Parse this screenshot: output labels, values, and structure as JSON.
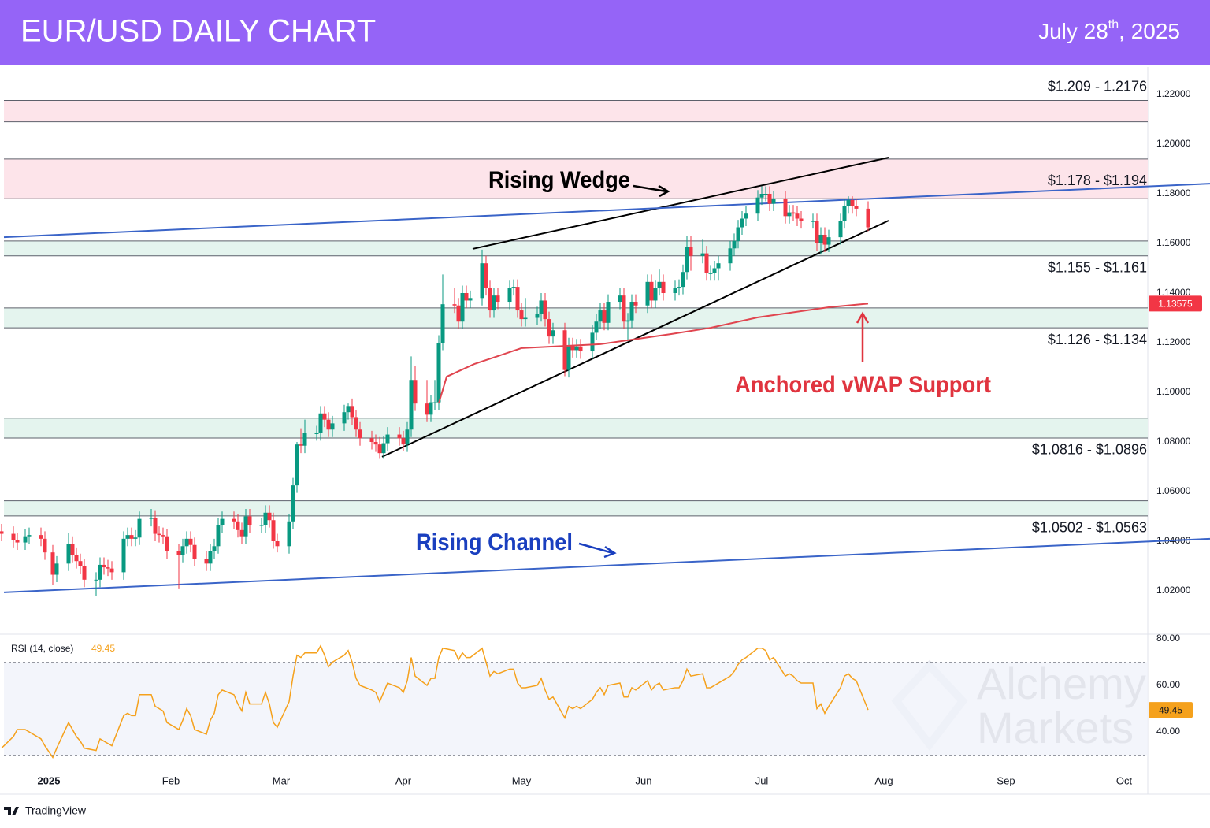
{
  "chart_data": {
    "type": "candlestick",
    "title": "EUR/USD DAILY CHART",
    "date": [
      "July 28",
      "th",
      ", 2025"
    ],
    "xlim": [
      -11.4,
      279
    ],
    "xticks": [
      {
        "value": 0,
        "label": "2025"
      },
      {
        "value": 31,
        "label": "Feb"
      },
      {
        "value": 59,
        "label": "Mar"
      },
      {
        "value": 90,
        "label": "Apr"
      },
      {
        "value": 120,
        "label": "May"
      },
      {
        "value": 151,
        "label": "Jun"
      },
      {
        "value": 181,
        "label": "Jul"
      },
      {
        "value": 212,
        "label": "Aug"
      },
      {
        "value": 243,
        "label": "Sep"
      },
      {
        "value": 273,
        "label": "Oct"
      }
    ],
    "ylim": [
      1.00254,
      1.23111
    ],
    "yticks": [
      {
        "value": 1.02,
        "label": "1.02000"
      },
      {
        "value": 1.04,
        "label": "1.04000"
      },
      {
        "value": 1.06,
        "label": "1.06000"
      },
      {
        "value": 1.08,
        "label": "1.08000"
      },
      {
        "value": 1.1,
        "label": "1.10000"
      },
      {
        "value": 1.12,
        "label": "1.12000"
      },
      {
        "value": 1.14,
        "label": "1.14000"
      },
      {
        "value": 1.16,
        "label": "1.16000"
      },
      {
        "value": 1.18,
        "label": "1.18000"
      },
      {
        "value": 1.2,
        "label": "1.20000"
      },
      {
        "value": 1.22,
        "label": "1.22000"
      }
    ],
    "grid": false,
    "up_color": "#089981",
    "down_color": "#f23645",
    "candles": {
      "x": [
        -12,
        -9,
        -8,
        -6,
        -5,
        -2,
        -1,
        1,
        2,
        5,
        6,
        7,
        8,
        9,
        12,
        13,
        14,
        15,
        16,
        19,
        20,
        21,
        22,
        23,
        26,
        27,
        28,
        29,
        30,
        33,
        34,
        35,
        36,
        37,
        40,
        41,
        42,
        43,
        44,
        47,
        48,
        49,
        50,
        51,
        54,
        55,
        56,
        57,
        58,
        61,
        62,
        63,
        64,
        65,
        68,
        69,
        70,
        71,
        72,
        75,
        76,
        77,
        78,
        79,
        82,
        83,
        84,
        85,
        86,
        89,
        90,
        91,
        92,
        93,
        96,
        97,
        98,
        99,
        100,
        103,
        104,
        105,
        106,
        107,
        110,
        111,
        112,
        113,
        114,
        117,
        118,
        119,
        120,
        121,
        124,
        125,
        126,
        127,
        128,
        131,
        132,
        133,
        134,
        135,
        138,
        139,
        140,
        141,
        142,
        145,
        146,
        147,
        148,
        149,
        152,
        153,
        154,
        155,
        156,
        159,
        160,
        161,
        162,
        163,
        166,
        167,
        168,
        169,
        170,
        173,
        174,
        175,
        176,
        177,
        180,
        181,
        182,
        183,
        184,
        187,
        188,
        189,
        190,
        191,
        194,
        195,
        196,
        197,
        198,
        201,
        202,
        203,
        204,
        205,
        208
      ],
      "open": [
        1.044,
        1.043,
        1.0405,
        1.0395,
        1.042,
        1.0425,
        1.041,
        1.0355,
        1.0265,
        1.031,
        1.039,
        1.0345,
        1.032,
        1.03,
        1.0245,
        1.0245,
        1.0305,
        1.0295,
        1.029,
        1.0275,
        1.041,
        1.0425,
        1.041,
        1.0415,
        1.049,
        1.0495,
        1.043,
        1.0425,
        1.042,
        1.036,
        1.0345,
        1.038,
        1.041,
        1.0385,
        1.033,
        1.031,
        1.036,
        1.038,
        1.0465,
        1.049,
        1.048,
        1.0445,
        1.042,
        1.05,
        1.0465,
        1.0465,
        1.0515,
        1.0485,
        1.04,
        1.038,
        1.048,
        1.0625,
        1.079,
        1.0785,
        1.0835,
        1.0835,
        1.0915,
        1.089,
        1.085,
        1.0875,
        1.092,
        1.0945,
        1.09,
        1.085,
        1.0815,
        1.08,
        1.079,
        1.0755,
        1.0795,
        1.083,
        1.0815,
        1.079,
        1.085,
        1.105,
        1.0955,
        1.091,
        1.096,
        1.096,
        1.12,
        1.1355,
        1.135,
        1.1285,
        1.14,
        1.137,
        1.138,
        1.152,
        1.142,
        1.133,
        1.139,
        1.1365,
        1.142,
        1.1425,
        1.133,
        1.1295,
        1.13,
        1.1315,
        1.137,
        1.1295,
        1.1225,
        1.125,
        1.109,
        1.119,
        1.117,
        1.1185,
        1.1165,
        1.124,
        1.1285,
        1.133,
        1.128,
        1.1365,
        1.139,
        1.1285,
        1.129,
        1.1365,
        1.135,
        1.1445,
        1.137,
        1.142,
        1.1445,
        1.14,
        1.142,
        1.1425,
        1.1485,
        1.1585,
        1.155,
        1.156,
        1.148,
        1.148,
        1.15,
        1.152,
        1.158,
        1.161,
        1.1665,
        1.17,
        1.172,
        1.1785,
        1.18,
        1.18,
        1.176,
        1.178,
        1.171,
        1.1725,
        1.172,
        1.17,
        1.169,
        1.169,
        1.16,
        1.1635,
        1.1595,
        1.1625,
        1.169,
        1.175,
        1.1775,
        1.175,
        1.174
      ],
      "high": [
        1.047,
        1.046,
        1.0435,
        1.045,
        1.0455,
        1.0455,
        1.044,
        1.0385,
        1.034,
        1.0435,
        1.042,
        1.0375,
        1.035,
        1.033,
        1.0275,
        1.0335,
        1.0335,
        1.0325,
        1.032,
        1.044,
        1.0455,
        1.0455,
        1.0445,
        1.052,
        1.053,
        1.0525,
        1.046,
        1.0455,
        1.045,
        1.039,
        1.041,
        1.044,
        1.044,
        1.0415,
        1.036,
        1.039,
        1.041,
        1.0495,
        1.052,
        1.052,
        1.051,
        1.0475,
        1.053,
        1.053,
        1.0495,
        1.0545,
        1.0545,
        1.0515,
        1.043,
        1.051,
        1.0655,
        1.08,
        1.0855,
        1.089,
        1.0865,
        1.0945,
        1.0945,
        1.092,
        1.0905,
        1.095,
        1.0955,
        1.0975,
        1.093,
        1.088,
        1.0845,
        1.083,
        1.082,
        1.0825,
        1.086,
        1.086,
        1.0845,
        1.088,
        1.1145,
        1.1105,
        1.105,
        1.099,
        1.105,
        1.123,
        1.1475,
        1.142,
        1.138,
        1.143,
        1.143,
        1.141,
        1.1575,
        1.155,
        1.145,
        1.142,
        1.142,
        1.145,
        1.1455,
        1.1455,
        1.136,
        1.138,
        1.1345,
        1.14,
        1.14,
        1.1325,
        1.128,
        1.128,
        1.122,
        1.122,
        1.1215,
        1.1215,
        1.127,
        1.1315,
        1.136,
        1.136,
        1.1395,
        1.142,
        1.142,
        1.132,
        1.1395,
        1.1395,
        1.1475,
        1.1475,
        1.145,
        1.1495,
        1.1475,
        1.145,
        1.1455,
        1.1515,
        1.163,
        1.163,
        1.1615,
        1.159,
        1.151,
        1.153,
        1.155,
        1.161,
        1.164,
        1.1695,
        1.173,
        1.175,
        1.1815,
        1.183,
        1.183,
        1.183,
        1.181,
        1.181,
        1.1755,
        1.1755,
        1.175,
        1.173,
        1.172,
        1.172,
        1.1665,
        1.1665,
        1.1655,
        1.172,
        1.178,
        1.179,
        1.179,
        1.178,
        1.177
      ],
      "low": [
        1.04,
        1.0375,
        1.0365,
        1.0365,
        1.039,
        1.038,
        1.0325,
        1.0225,
        1.0235,
        1.028,
        1.0315,
        1.029,
        1.027,
        1.0215,
        1.018,
        1.0215,
        1.0265,
        1.026,
        1.0245,
        1.0245,
        1.038,
        1.038,
        1.038,
        1.0385,
        1.046,
        1.04,
        1.0395,
        1.039,
        1.033,
        1.021,
        1.0315,
        1.035,
        1.0355,
        1.03,
        1.028,
        1.028,
        1.033,
        1.035,
        1.0435,
        1.045,
        1.0415,
        1.039,
        1.039,
        1.0435,
        1.0435,
        1.0435,
        1.0455,
        1.037,
        1.0355,
        1.035,
        1.045,
        1.0595,
        1.0755,
        1.0755,
        1.0805,
        1.0805,
        1.086,
        1.082,
        1.082,
        1.0845,
        1.089,
        1.087,
        1.082,
        1.0785,
        1.077,
        1.076,
        1.0735,
        1.0735,
        1.0765,
        1.0785,
        1.0765,
        1.076,
        1.082,
        1.0925,
        1.088,
        1.088,
        1.093,
        1.093,
        1.117,
        1.132,
        1.1255,
        1.1255,
        1.134,
        1.134,
        1.135,
        1.139,
        1.13,
        1.13,
        1.1335,
        1.1335,
        1.139,
        1.13,
        1.1265,
        1.1265,
        1.127,
        1.1285,
        1.1265,
        1.1195,
        1.1195,
        1.1065,
        1.106,
        1.114,
        1.114,
        1.1135,
        1.1135,
        1.121,
        1.1255,
        1.125,
        1.125,
        1.1335,
        1.1255,
        1.121,
        1.126,
        1.132,
        1.132,
        1.134,
        1.134,
        1.139,
        1.137,
        1.137,
        1.139,
        1.1395,
        1.1455,
        1.149,
        1.152,
        1.145,
        1.145,
        1.145,
        1.145,
        1.149,
        1.155,
        1.158,
        1.1635,
        1.167,
        1.169,
        1.1755,
        1.177,
        1.173,
        1.173,
        1.168,
        1.168,
        1.169,
        1.167,
        1.166,
        1.166,
        1.157,
        1.1555,
        1.1565,
        1.1565,
        1.1595,
        1.166,
        1.172,
        1.172,
        1.171,
        1.165
      ],
      "close": [
        1.043,
        1.0405,
        1.0395,
        1.042,
        1.0425,
        1.041,
        1.0355,
        1.0265,
        1.031,
        1.039,
        1.0345,
        1.032,
        1.03,
        1.0245,
        1.0245,
        1.0305,
        1.0295,
        1.029,
        1.0275,
        1.041,
        1.0425,
        1.041,
        1.0415,
        1.049,
        1.0495,
        1.043,
        1.0425,
        1.042,
        1.036,
        1.0345,
        1.038,
        1.041,
        1.0385,
        1.033,
        1.031,
        1.036,
        1.038,
        1.0465,
        1.049,
        1.048,
        1.0445,
        1.042,
        1.05,
        1.0465,
        1.0465,
        1.0515,
        1.0485,
        1.04,
        1.038,
        1.048,
        1.0625,
        1.079,
        1.0785,
        1.0835,
        1.0835,
        1.0915,
        1.089,
        1.085,
        1.0875,
        1.092,
        1.0945,
        1.09,
        1.085,
        1.0815,
        1.08,
        1.079,
        1.0755,
        1.0795,
        1.083,
        1.0815,
        1.079,
        1.085,
        1.105,
        1.0955,
        1.091,
        1.096,
        1.096,
        1.12,
        1.1355,
        1.135,
        1.1285,
        1.14,
        1.137,
        1.138,
        1.152,
        1.142,
        1.133,
        1.139,
        1.1365,
        1.142,
        1.1425,
        1.133,
        1.1295,
        1.13,
        1.1315,
        1.137,
        1.1295,
        1.1225,
        1.125,
        1.109,
        1.119,
        1.117,
        1.1185,
        1.1165,
        1.124,
        1.1285,
        1.133,
        1.128,
        1.1365,
        1.139,
        1.1285,
        1.129,
        1.1365,
        1.135,
        1.1445,
        1.137,
        1.142,
        1.1445,
        1.14,
        1.142,
        1.1425,
        1.1485,
        1.1585,
        1.155,
        1.156,
        1.148,
        1.148,
        1.15,
        1.152,
        1.158,
        1.161,
        1.1665,
        1.17,
        1.172,
        1.1785,
        1.18,
        1.18,
        1.176,
        1.178,
        1.171,
        1.1725,
        1.172,
        1.17,
        1.169,
        1.169,
        1.16,
        1.1635,
        1.1595,
        1.1625,
        1.169,
        1.175,
        1.1775,
        1.175,
        1.174,
        1.1665
      ]
    },
    "vwap": {
      "color": "#e0454f",
      "x": [
        99,
        101,
        108,
        120,
        140,
        158,
        168,
        180,
        198,
        208
      ],
      "values": [
        1.0956,
        1.1063,
        1.1114,
        1.1178,
        1.1194,
        1.1235,
        1.126,
        1.1302,
        1.1343,
        1.13575
      ]
    },
    "zones": [
      {
        "range": [
          1.209,
          1.2176
        ],
        "color": "#fde4ea",
        "label": "$1.209 - 1.2176"
      },
      {
        "range": [
          1.178,
          1.194
        ],
        "color": "#fde4ea",
        "label": "$1.178 - $1.194"
      },
      {
        "range": [
          1.155,
          1.161
        ],
        "color": "#e4f4ee",
        "label": "$1.155 - $1.161"
      },
      {
        "range": [
          1.126,
          1.134
        ],
        "color": "#e4f4ee",
        "label": "$1.126 - $1.134"
      },
      {
        "range": [
          1.0816,
          1.0896
        ],
        "color": "#e4f4ee",
        "label": "$1.0816 - $1.0896"
      },
      {
        "range": [
          1.0502,
          1.0563
        ],
        "color": "#e4f4ee",
        "label": "$1.0502 - $1.0563"
      }
    ],
    "trendlines": [
      {
        "color": "#000000",
        "points": [
          [
            107.6,
            1.1578
          ],
          [
            213.2,
            1.1946
          ]
        ]
      },
      {
        "color": "#000000",
        "points": [
          [
            84.6,
            1.074
          ],
          [
            213.2,
            1.1692
          ]
        ]
      },
      {
        "color": "#3a64c8",
        "points": [
          [
            -11.4,
            1.1625
          ],
          [
            294.8,
            1.1841
          ]
        ]
      },
      {
        "color": "#3a64c8",
        "points": [
          [
            -11.4,
            1.0194
          ],
          [
            294.8,
            1.041
          ]
        ]
      }
    ],
    "annotations": [
      {
        "text": "Rising Wedge",
        "color": "#000000"
      },
      {
        "text": "Anchored vWAP Support",
        "color": "#e0343f"
      },
      {
        "text": "Rising Channel",
        "color": "#1a3fbf"
      }
    ],
    "rsi": {
      "label": "RSI (14, close)",
      "color": "#f5a11c",
      "ylim": [
        26.78,
        82.03
      ],
      "yticks": [
        {
          "value": 40,
          "label": "40.00"
        },
        {
          "value": 60,
          "label": "60.00"
        },
        {
          "value": 80,
          "label": "80.00"
        }
      ],
      "levels": [
        30,
        70
      ],
      "values": [
        33,
        38,
        41,
        41,
        40,
        37,
        34,
        29,
        33,
        44,
        41,
        38,
        36,
        33,
        32,
        37,
        36,
        35,
        34,
        47,
        48,
        47,
        47,
        56,
        56,
        51,
        50,
        49,
        44,
        41,
        45,
        50,
        47,
        41,
        39,
        45,
        48,
        56,
        58,
        56,
        52,
        49,
        57,
        52,
        52,
        57,
        52,
        44,
        42,
        53,
        64,
        73,
        72,
        74,
        74,
        77,
        73,
        68,
        70,
        73,
        75,
        70,
        63,
        60,
        58,
        57,
        53,
        57,
        61,
        59,
        57,
        62,
        72,
        64,
        60,
        63,
        63,
        72,
        76,
        75,
        71,
        74,
        72,
        72,
        76,
        70,
        64,
        66,
        65,
        67,
        67,
        61,
        59,
        59,
        60,
        63,
        58,
        54,
        55,
        46,
        51,
        50,
        51,
        50,
        54,
        57,
        59,
        56,
        60,
        61,
        55,
        55,
        59,
        58,
        62,
        58,
        60,
        61,
        58,
        59,
        59,
        62,
        67,
        64,
        65,
        59,
        59,
        60,
        61,
        64,
        66,
        69,
        71,
        72,
        76,
        76,
        75,
        71,
        72,
        64,
        65,
        64,
        62,
        61,
        61,
        50,
        52,
        48,
        51,
        59,
        64,
        65,
        63,
        62,
        49.45
      ]
    },
    "watermark": [
      "Alchemy",
      "Markets"
    ],
    "footer": "TradingView"
  }
}
